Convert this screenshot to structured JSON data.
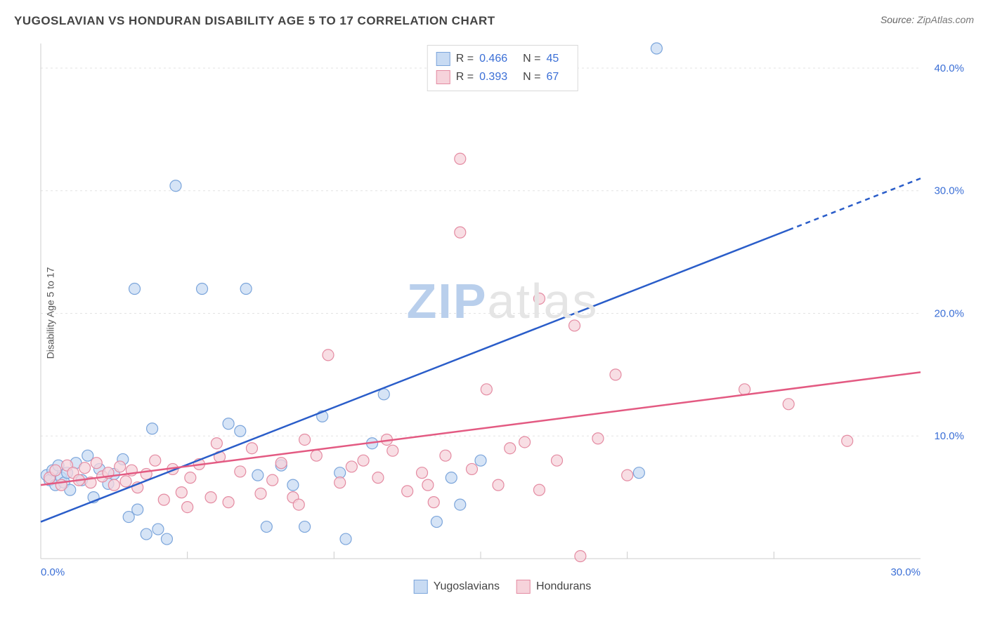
{
  "title": "YUGOSLAVIAN VS HONDURAN DISABILITY AGE 5 TO 17 CORRELATION CHART",
  "source_label": "Source: ",
  "source_value": "ZipAtlas.com",
  "ylabel": "Disability Age 5 to 17",
  "watermark_a": "ZIP",
  "watermark_b": "atlas",
  "chart": {
    "type": "scatter-with-regression",
    "xlim": [
      0,
      30
    ],
    "ylim": [
      0,
      42
    ],
    "xticks": [
      0,
      30
    ],
    "yticks": [
      10,
      20,
      30,
      40
    ],
    "tick_suffix": "%",
    "tick_decimals": 1,
    "grid_color": "#e3e3e3",
    "axis_color": "#cccccc",
    "background": "#ffffff",
    "xtick_color": "#3b6fd6",
    "ytick_color": "#3b6fd6",
    "marker_radius": 8,
    "marker_stroke_width": 1.2,
    "line_width": 2.5,
    "series": [
      {
        "name": "Yugoslavians",
        "fill": "#c8dbf3",
        "stroke": "#7ba5db",
        "line_color": "#2a5dc9",
        "r": "0.466",
        "n": "45",
        "trend_y_at_x0": 3.0,
        "trend_y_at_x30": 31.0,
        "trend_dash_from_x": 25.5,
        "points": [
          [
            0.2,
            6.8
          ],
          [
            0.3,
            6.4
          ],
          [
            0.4,
            7.2
          ],
          [
            0.5,
            6.0
          ],
          [
            0.6,
            7.6
          ],
          [
            0.7,
            6.6
          ],
          [
            0.8,
            6.2
          ],
          [
            0.9,
            7.0
          ],
          [
            1.0,
            5.6
          ],
          [
            1.2,
            7.8
          ],
          [
            1.4,
            6.4
          ],
          [
            1.6,
            8.4
          ],
          [
            1.8,
            5.0
          ],
          [
            2.0,
            7.3
          ],
          [
            2.3,
            6.1
          ],
          [
            2.5,
            6.9
          ],
          [
            2.8,
            8.1
          ],
          [
            3.0,
            3.4
          ],
          [
            3.3,
            4.0
          ],
          [
            3.6,
            2.0
          ],
          [
            3.8,
            10.6
          ],
          [
            4.0,
            2.4
          ],
          [
            4.3,
            1.6
          ],
          [
            3.2,
            22.0
          ],
          [
            4.6,
            30.4
          ],
          [
            5.5,
            22.0
          ],
          [
            6.4,
            11.0
          ],
          [
            7.0,
            22.0
          ],
          [
            6.8,
            10.4
          ],
          [
            7.4,
            6.8
          ],
          [
            7.7,
            2.6
          ],
          [
            8.2,
            7.6
          ],
          [
            8.6,
            6.0
          ],
          [
            9.0,
            2.6
          ],
          [
            9.6,
            11.6
          ],
          [
            10.2,
            7.0
          ],
          [
            10.4,
            1.6
          ],
          [
            11.3,
            9.4
          ],
          [
            11.7,
            13.4
          ],
          [
            13.5,
            3.0
          ],
          [
            14.3,
            4.4
          ],
          [
            14.0,
            6.6
          ],
          [
            15.0,
            8.0
          ],
          [
            21.0,
            41.6
          ],
          [
            20.4,
            7.0
          ]
        ]
      },
      {
        "name": "Hondurans",
        "fill": "#f6d3db",
        "stroke": "#e48ba2",
        "line_color": "#e35a82",
        "r": "0.393",
        "n": "67",
        "trend_y_at_x0": 6.0,
        "trend_y_at_x30": 15.2,
        "trend_dash_from_x": null,
        "points": [
          [
            0.3,
            6.6
          ],
          [
            0.5,
            7.2
          ],
          [
            0.7,
            6.0
          ],
          [
            0.9,
            7.6
          ],
          [
            1.1,
            7.0
          ],
          [
            1.3,
            6.4
          ],
          [
            1.5,
            7.4
          ],
          [
            1.7,
            6.2
          ],
          [
            1.9,
            7.8
          ],
          [
            2.1,
            6.7
          ],
          [
            2.3,
            7.0
          ],
          [
            2.5,
            6.0
          ],
          [
            2.7,
            7.5
          ],
          [
            2.9,
            6.3
          ],
          [
            3.1,
            7.2
          ],
          [
            3.3,
            5.8
          ],
          [
            3.6,
            6.9
          ],
          [
            3.9,
            8.0
          ],
          [
            4.2,
            4.8
          ],
          [
            4.5,
            7.3
          ],
          [
            4.8,
            5.4
          ],
          [
            5.1,
            6.6
          ],
          [
            5.4,
            7.7
          ],
          [
            5.8,
            5.0
          ],
          [
            6.1,
            8.3
          ],
          [
            6.4,
            4.6
          ],
          [
            6.8,
            7.1
          ],
          [
            7.2,
            9.0
          ],
          [
            7.5,
            5.3
          ],
          [
            7.9,
            6.4
          ],
          [
            8.2,
            7.8
          ],
          [
            8.6,
            5.0
          ],
          [
            9.0,
            9.7
          ],
          [
            9.4,
            8.4
          ],
          [
            9.8,
            16.6
          ],
          [
            10.2,
            6.2
          ],
          [
            10.6,
            7.5
          ],
          [
            11.0,
            8.0
          ],
          [
            11.5,
            6.6
          ],
          [
            12.0,
            8.8
          ],
          [
            12.5,
            5.5
          ],
          [
            13.0,
            7.0
          ],
          [
            13.4,
            4.6
          ],
          [
            13.8,
            8.4
          ],
          [
            14.3,
            32.6
          ],
          [
            14.3,
            26.6
          ],
          [
            14.7,
            7.3
          ],
          [
            15.2,
            13.8
          ],
          [
            15.6,
            6.0
          ],
          [
            16.0,
            9.0
          ],
          [
            16.5,
            9.5
          ],
          [
            17.0,
            5.6
          ],
          [
            17.0,
            21.2
          ],
          [
            17.6,
            8.0
          ],
          [
            18.2,
            19.0
          ],
          [
            18.4,
            0.2
          ],
          [
            19.0,
            9.8
          ],
          [
            19.6,
            15.0
          ],
          [
            20.0,
            6.8
          ],
          [
            24.0,
            13.8
          ],
          [
            25.5,
            12.6
          ],
          [
            27.5,
            9.6
          ],
          [
            5.0,
            4.2
          ],
          [
            6.0,
            9.4
          ],
          [
            8.8,
            4.4
          ],
          [
            11.8,
            9.7
          ],
          [
            13.2,
            6.0
          ]
        ]
      }
    ]
  },
  "legend_labels": {
    "r_prefix": "R = ",
    "n_prefix": "N = "
  }
}
